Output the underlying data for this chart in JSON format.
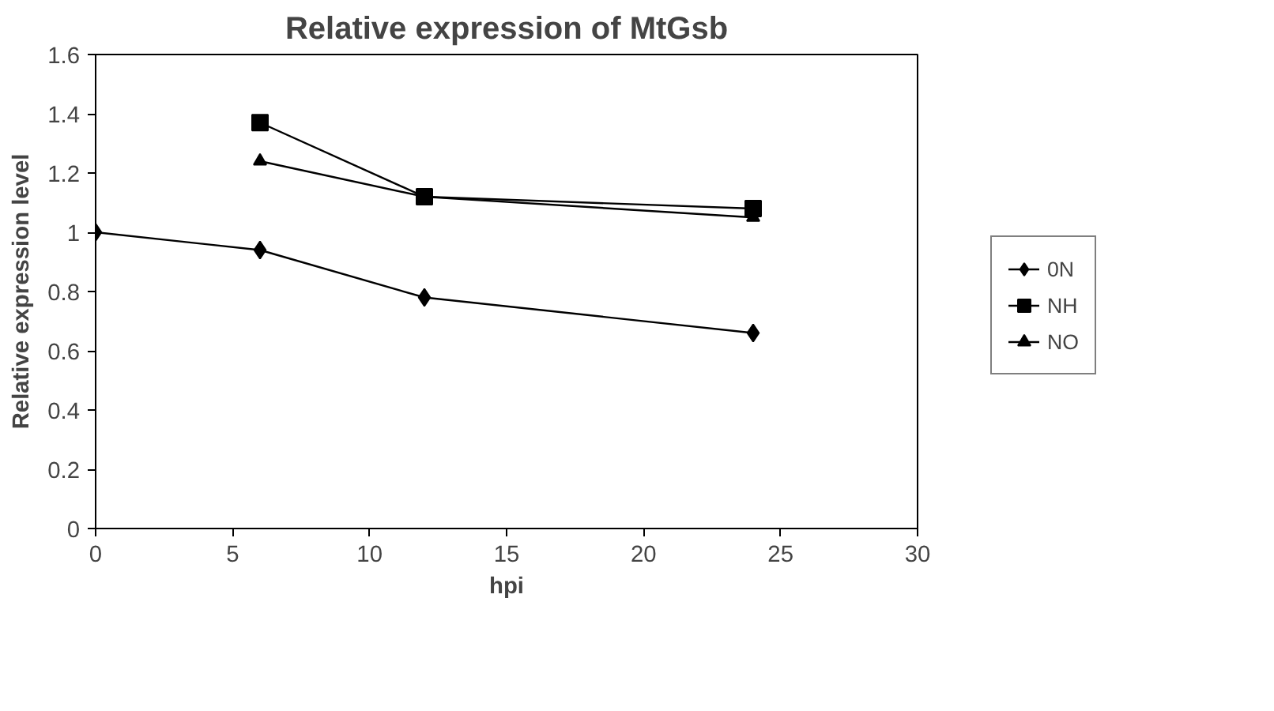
{
  "chart_data": {
    "type": "line",
    "title": "Relative expression of MtGsb",
    "xlabel": "hpi",
    "ylabel": "Relative expression level",
    "xlim": [
      0,
      30
    ],
    "xticks": [
      0,
      5,
      10,
      15,
      20,
      25,
      30
    ],
    "ylim": [
      0,
      1.6
    ],
    "yticks": [
      0,
      0.2,
      0.4,
      0.6,
      0.8,
      1,
      1.2,
      1.4,
      1.6
    ],
    "grid": false,
    "legend": "right",
    "line_style": "solid",
    "series": [
      {
        "name": "0N",
        "color": "#000000",
        "marker": "diamond",
        "x": [
          0,
          6,
          12,
          24
        ],
        "values": [
          1.0,
          0.94,
          0.78,
          0.66
        ]
      },
      {
        "name": "NH",
        "color": "#000000",
        "marker": "square",
        "x": [
          6,
          12,
          24
        ],
        "values": [
          1.37,
          1.12,
          1.08
        ]
      },
      {
        "name": "NO",
        "color": "#000000",
        "marker": "triangle",
        "x": [
          6,
          12,
          24
        ],
        "values": [
          1.24,
          1.12,
          1.05
        ]
      }
    ]
  }
}
